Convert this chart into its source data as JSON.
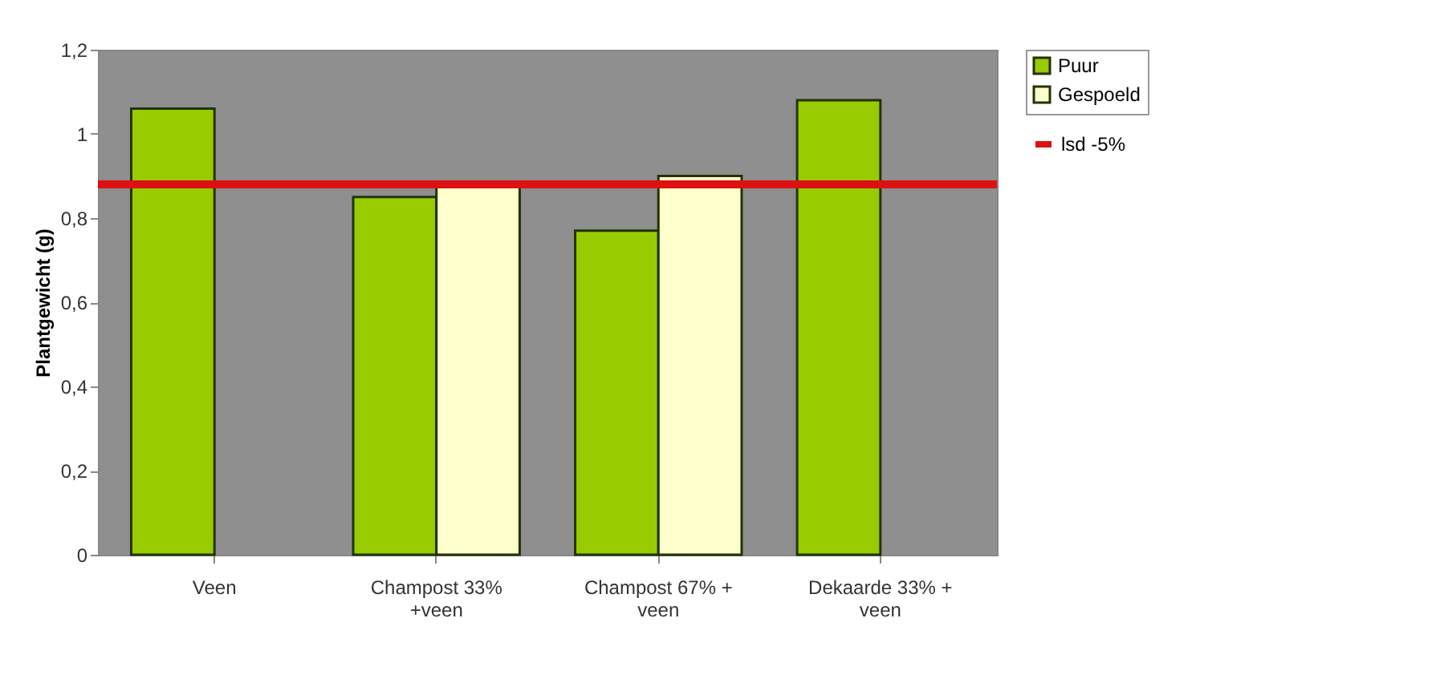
{
  "chart_data": {
    "type": "bar",
    "ylabel": "Plantgewicht (g)",
    "categories": [
      "Veen",
      "Champost 33%\n+veen",
      "Champost 67% +\nveen",
      "Dekaarde 33% +\nveen"
    ],
    "series": [
      {
        "name": "Puur",
        "color": "#99cc00",
        "values": [
          1.06,
          0.85,
          0.77,
          1.08
        ]
      },
      {
        "name": "Gespoeld",
        "color": "#ffffcc",
        "values": [
          null,
          0.88,
          0.9,
          null
        ]
      }
    ],
    "ref_lines": [
      {
        "axis": "y",
        "value": 0.88,
        "label": "lsd -5%",
        "color": "#dd1111"
      }
    ],
    "ylim": [
      0,
      1.2
    ],
    "yticks": [
      0,
      {
        "value": 0.2,
        "label": "0,2"
      },
      {
        "value": 0.4,
        "label": "0,4"
      },
      {
        "value": 0.6,
        "label": "0,6"
      },
      {
        "value": 0.8,
        "label": "0,8"
      },
      1,
      {
        "value": 1.2,
        "label": "1,2"
      }
    ],
    "grid": false,
    "legend": "right"
  }
}
